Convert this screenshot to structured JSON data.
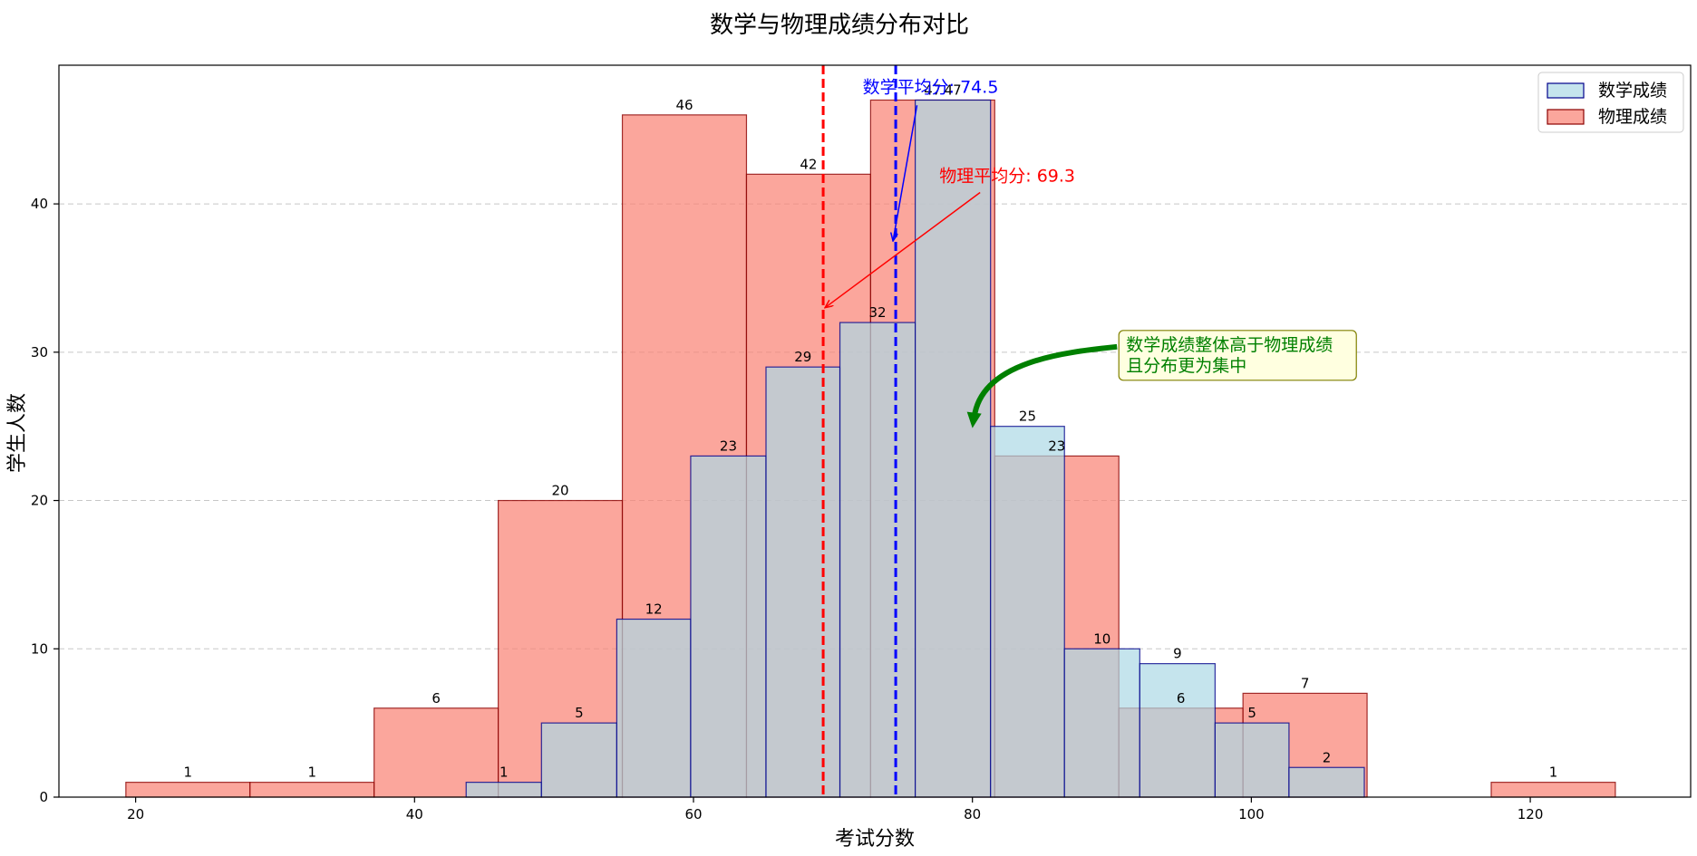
{
  "chart_data": {
    "type": "bar",
    "title": "数学与物理成绩分布对比",
    "xlabel": "考试分数",
    "ylabel": "学生人数",
    "xlim": [
      14.5,
      131.5
    ],
    "ylim": [
      0,
      49.35
    ],
    "xticks": [
      20,
      40,
      60,
      80,
      100,
      120
    ],
    "yticks": [
      0,
      10,
      20,
      30,
      40
    ],
    "grid": "y-dashed",
    "legend_position": "top-right",
    "series": [
      {
        "name": "数学成绩",
        "face_color": "#ADD8E6",
        "edge_color": "#00008B",
        "bin_edges": [
          43.7,
          49.1,
          54.5,
          59.8,
          65.2,
          70.5,
          75.9,
          81.3,
          86.6,
          92.0,
          97.4,
          102.7,
          108.1
        ],
        "counts": [
          1,
          5,
          12,
          23,
          29,
          32,
          47,
          25,
          10,
          9,
          5,
          2
        ]
      },
      {
        "name": "物理成绩",
        "face_color": "#FA8072",
        "edge_color": "#8B0000",
        "bin_edges": [
          19.3,
          28.2,
          37.1,
          46.0,
          54.9,
          63.8,
          72.7,
          81.6,
          90.5,
          99.4,
          108.3,
          117.2,
          126.1
        ],
        "counts": [
          1,
          1,
          6,
          20,
          46,
          42,
          47,
          23,
          6,
          7,
          0,
          1
        ]
      }
    ],
    "mean_lines": [
      {
        "x": 74.5,
        "color": "#0000FF"
      },
      {
        "x": 69.3,
        "color": "#FF0000"
      }
    ],
    "annotations": [
      {
        "text": "数学平均分: 74.5",
        "color": "#0000FF",
        "at": [
          77,
          47.5
        ],
        "arrow_to": [
          74.5,
          37.5
        ]
      },
      {
        "text": "物理平均分: 69.3",
        "color": "#FF0000",
        "at": [
          82.5,
          41.5
        ],
        "arrow_to": [
          69.3,
          33
        ]
      },
      {
        "text": "数学成绩整体高于物理成绩\n且分布更为集中",
        "color": "#008000",
        "box_face": "#FFFFE0",
        "box_edge": "#808000",
        "at": [
          90.5,
          30
        ],
        "arrow_to": [
          80,
          25
        ]
      }
    ]
  }
}
